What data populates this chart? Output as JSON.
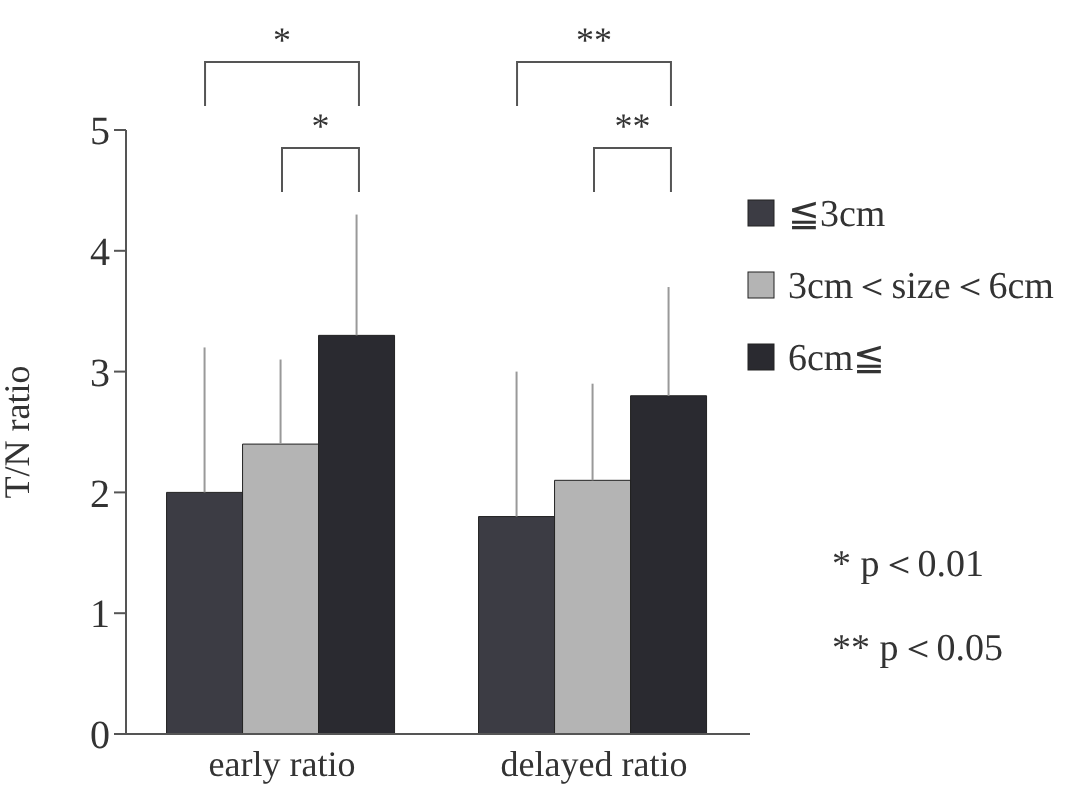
{
  "chart_data": {
    "type": "bar",
    "ylabel": "T/N ratio",
    "categories": [
      "early ratio",
      "delayed ratio"
    ],
    "series": [
      {
        "name": "≦3cm",
        "color": "#3c3c44",
        "values": [
          2.0,
          1.8
        ],
        "errors": [
          [
            2.0,
            3.2
          ],
          [
            1.8,
            3.0
          ]
        ]
      },
      {
        "name": "3cm＜size＜6cm",
        "color": "#b4b4b4",
        "values": [
          2.4,
          2.1
        ],
        "errors": [
          [
            2.4,
            3.1
          ],
          [
            2.1,
            2.9
          ]
        ]
      },
      {
        "name": "6cm≦",
        "color": "#2a2a30",
        "values": [
          3.3,
          2.8
        ],
        "errors": [
          [
            3.3,
            4.3
          ],
          [
            2.8,
            3.7
          ]
        ]
      }
    ],
    "ylim": [
      0,
      5
    ],
    "yticks": [
      0,
      1,
      2,
      3,
      4,
      5
    ],
    "legend": "right",
    "annotations": [
      "*",
      "**",
      "*",
      "**",
      "* p＜0.01",
      "** p＜0.05"
    ]
  }
}
